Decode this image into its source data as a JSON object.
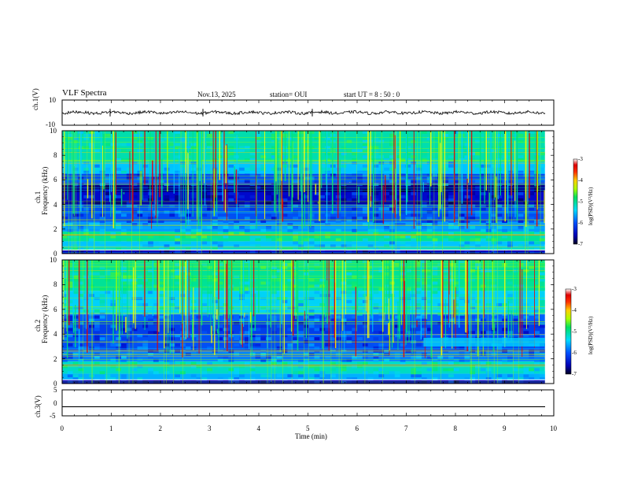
{
  "header": {
    "title": "VLF Spectra",
    "date": "Nov.13, 2025",
    "station": "station= OUI",
    "start_ut": "start  UT =  8 : 50 : 0"
  },
  "chart_data": [
    {
      "type": "line",
      "name": "ch1-waveform",
      "ylabel": "ch.1(V)",
      "ylim": [
        -10,
        10
      ],
      "yticks": [
        10,
        -10
      ],
      "xlim": [
        0,
        10
      ],
      "trace_level": 0
    },
    {
      "type": "heatmap",
      "name": "ch1-spectrogram",
      "ylabel_top": "ch.1",
      "ylabel": "Frequency (kHz)",
      "ylim": [
        0,
        10
      ],
      "yticks": [
        0,
        2,
        4,
        6,
        8,
        10
      ],
      "xlim": [
        0,
        10
      ],
      "colorbar": {
        "label": "log(PSD)(V²/Hz)",
        "range": [
          -7,
          -3
        ],
        "ticks": [
          -3,
          -4,
          -5,
          -6,
          -7
        ]
      }
    },
    {
      "type": "heatmap",
      "name": "ch2-spectrogram",
      "ylabel_top": "ch.2",
      "ylabel": "Frequency (kHz)",
      "ylim": [
        0,
        10
      ],
      "yticks": [
        0,
        2,
        4,
        6,
        8,
        10
      ],
      "xlim": [
        0,
        10
      ],
      "colorbar": {
        "label": "log(PSD)(V²/Hz)",
        "range": [
          -7,
          -3
        ],
        "ticks": [
          -3,
          -4,
          -5,
          -6,
          -7
        ]
      }
    },
    {
      "type": "line",
      "name": "ch3-waveform",
      "ylabel": "ch.3(V)",
      "ylim": [
        -5,
        5
      ],
      "yticks": [
        5,
        0,
        -5
      ],
      "xlim": [
        0,
        10
      ],
      "trace_level": -1.5
    }
  ],
  "xaxis": {
    "label": "Time  (min)",
    "ticks": [
      "0",
      "1",
      "2",
      "3",
      "4",
      "5",
      "6",
      "7",
      "8",
      "9",
      "10"
    ],
    "data_end": 9.82
  },
  "colors": {
    "frame": "#000000",
    "colormap": [
      "#00004a",
      "#0000c8",
      "#0064ff",
      "#00d2ff",
      "#00e678",
      "#9bff00",
      "#ffff00",
      "#ff8c00",
      "#e60000",
      "#ffffff"
    ]
  }
}
